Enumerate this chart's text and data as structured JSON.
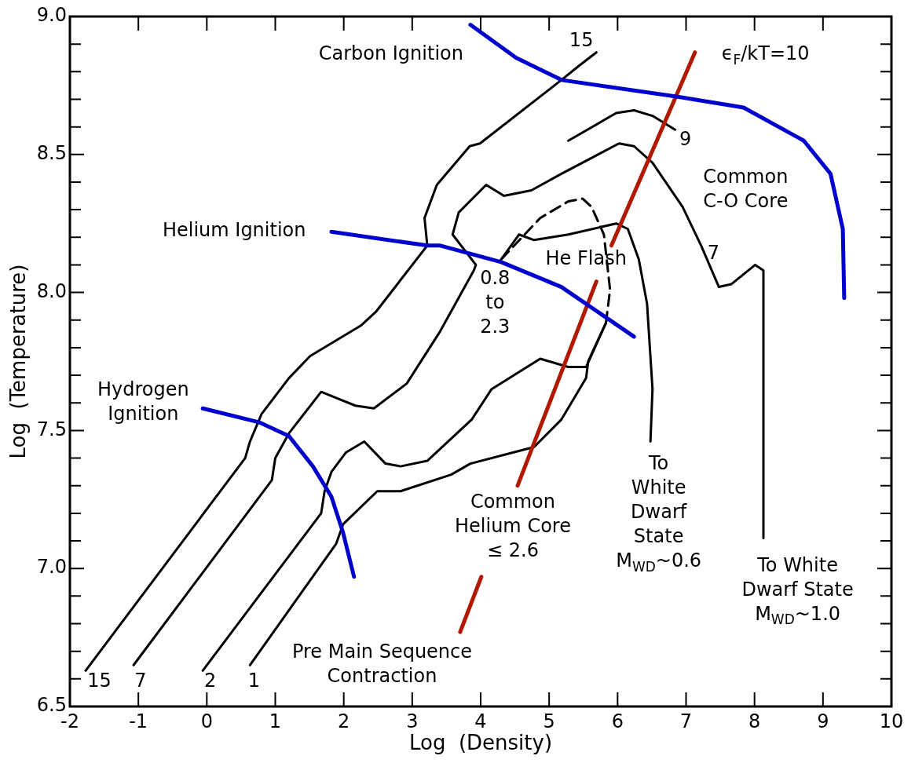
{
  "chart_data": {
    "type": "line",
    "xlabel": "Log  (Density)",
    "ylabel": "Log  (Temperature)",
    "xlim": [
      -2,
      10
    ],
    "xticks": [
      -2,
      -1,
      0,
      1,
      2,
      3,
      4,
      5,
      6,
      7,
      8,
      9,
      10
    ],
    "ylim": [
      6.5,
      9.0
    ],
    "yticks": [
      {
        "value": 6.5,
        "label": "6.5"
      },
      {
        "value": 6.6,
        "label": null
      },
      {
        "value": 6.7,
        "label": null
      },
      {
        "value": 6.8,
        "label": null
      },
      {
        "value": 6.9,
        "label": null
      },
      {
        "value": 7.0,
        "label": "7.0"
      },
      {
        "value": 7.1,
        "label": null
      },
      {
        "value": 7.2,
        "label": null
      },
      {
        "value": 7.3,
        "label": null
      },
      {
        "value": 7.4,
        "label": null
      },
      {
        "value": 7.5,
        "label": "7.5"
      },
      {
        "value": 7.6,
        "label": null
      },
      {
        "value": 7.7,
        "label": null
      },
      {
        "value": 7.8,
        "label": null
      },
      {
        "value": 7.9,
        "label": null
      },
      {
        "value": 8.0,
        "label": "8.0"
      },
      {
        "value": 8.1,
        "label": null
      },
      {
        "value": 8.2,
        "label": null
      },
      {
        "value": 8.3,
        "label": null
      },
      {
        "value": 8.4,
        "label": null
      },
      {
        "value": 8.5,
        "label": "8.5"
      },
      {
        "value": 8.6,
        "label": null
      },
      {
        "value": 8.7,
        "label": null
      },
      {
        "value": 8.8,
        "label": null
      },
      {
        "value": 8.9,
        "label": null
      },
      {
        "value": 9.0,
        "label": "9.0"
      }
    ],
    "marker": "none",
    "series": [
      {
        "color": "#0000cc",
        "x": [
          3.85,
          4.52,
          5.18,
          6.86,
          7.84,
          8.72,
          9.11,
          9.29,
          9.31
        ],
        "values": [
          8.97,
          8.85,
          8.77,
          8.71,
          8.67,
          8.55,
          8.43,
          8.23,
          7.98
        ]
      },
      {
        "color": "#0000cc",
        "x": [
          1.82,
          3.22,
          3.41,
          4.3,
          5.18,
          6.24
        ],
        "values": [
          8.22,
          8.17,
          8.17,
          8.11,
          8.02,
          7.84
        ]
      },
      {
        "color": "#0000cc",
        "x": [
          -0.06,
          0.76,
          1.2,
          1.55,
          1.82,
          1.99,
          2.15
        ],
        "values": [
          7.58,
          7.53,
          7.48,
          7.37,
          7.26,
          7.13,
          6.97
        ]
      },
      {
        "color": "#b01800",
        "x": [
          7.13,
          5.91,
          null,
          5.69,
          4.54,
          null,
          4.01,
          3.7
        ],
        "values": [
          8.87,
          8.17,
          null,
          8.04,
          7.3,
          null,
          6.97,
          6.77
        ]
      },
      {
        "color": "#000000",
        "x": [
          -1.77,
          0.56,
          0.63,
          0.8,
          1.2,
          1.51,
          2.25,
          2.47,
          3.22,
          3.18,
          3.36,
          3.84,
          3.99,
          5.18,
          5.43,
          5.69
        ],
        "values": [
          6.63,
          7.4,
          7.46,
          7.56,
          7.69,
          7.77,
          7.88,
          7.93,
          8.17,
          8.27,
          8.39,
          8.53,
          8.54,
          8.77,
          8.82,
          8.87
        ]
      },
      {
        "color": "#000000",
        "x": [
          -1.07,
          0.95,
          1.0,
          1.2,
          1.67,
          2.17,
          2.44,
          2.92,
          3.41,
          3.9,
          3.93,
          3.59,
          3.68,
          4.08,
          4.34,
          4.74,
          5.18,
          6.02,
          6.24,
          6.51,
          6.95,
          7.22,
          7.48,
          7.66,
          8.01,
          8.13,
          8.13
        ],
        "values": [
          6.65,
          7.32,
          7.4,
          7.49,
          7.64,
          7.59,
          7.58,
          7.67,
          7.86,
          8.08,
          8.1,
          8.21,
          8.29,
          8.39,
          8.35,
          8.37,
          8.43,
          8.54,
          8.53,
          8.47,
          8.31,
          8.17,
          8.02,
          8.03,
          8.1,
          8.08,
          7.11
        ]
      },
      {
        "color": "#000000",
        "x": [
          5.28,
          5.98,
          6.24,
          6.51,
          6.84
        ],
        "values": [
          8.55,
          8.65,
          8.66,
          8.64,
          8.59
        ]
      },
      {
        "color": "#000000",
        "x": [
          -0.06,
          1.67,
          1.72,
          1.82,
          2.03,
          2.3,
          2.61,
          2.83,
          3.22,
          3.87,
          4.16,
          4.87,
          5.28,
          5.54,
          5.83
        ],
        "values": [
          6.63,
          7.2,
          7.28,
          7.35,
          7.42,
          7.46,
          7.38,
          7.37,
          7.39,
          7.54,
          7.65,
          7.76,
          7.73,
          7.73,
          7.89
        ]
      },
      {
        "color": "#000000",
        "x": [
          0.63,
          1.89,
          1.99,
          2.49,
          2.83,
          3.57,
          3.85,
          4.47,
          4.78,
          5.18,
          5.54,
          5.57,
          5.83
        ],
        "values": [
          6.65,
          7.09,
          7.16,
          7.28,
          7.28,
          7.34,
          7.38,
          7.42,
          7.44,
          7.54,
          7.69,
          7.75,
          7.89
        ]
      },
      {
        "color": "#000000",
        "line_style": "dashed",
        "x": [
          5.83,
          5.89,
          5.8,
          5.62,
          5.49,
          5.28,
          4.87,
          4.3
        ],
        "values": [
          7.89,
          8.01,
          8.21,
          8.31,
          8.34,
          8.33,
          8.27,
          8.12
        ]
      },
      {
        "color": "#000000",
        "x": [
          4.3,
          4.56,
          4.78,
          5.28,
          5.98,
          6.15,
          6.31,
          6.43,
          6.51,
          6.48
        ],
        "values": [
          8.12,
          8.21,
          8.19,
          8.21,
          8.25,
          8.23,
          8.12,
          7.96,
          7.65,
          7.46
        ]
      }
    ],
    "annotations": [
      "Carbon Ignition",
      "ϵ$_{F}$/kT=10",
      "15",
      "9",
      "Common\nC-O Core",
      "7",
      "Helium Ignition",
      "He Flash",
      "0.8\nto\n2.3",
      "Hydrogen\nIgnition",
      "15",
      "7",
      "2",
      "1",
      "Pre Main Sequence\nContraction",
      "Common\nHelium Core\n≤ 2.6",
      "To\nWhite\nDwarf\nState\nM$_{WD}$~0.6",
      "To White\nDwarf State\nM$_{WD}$~1.0"
    ]
  }
}
